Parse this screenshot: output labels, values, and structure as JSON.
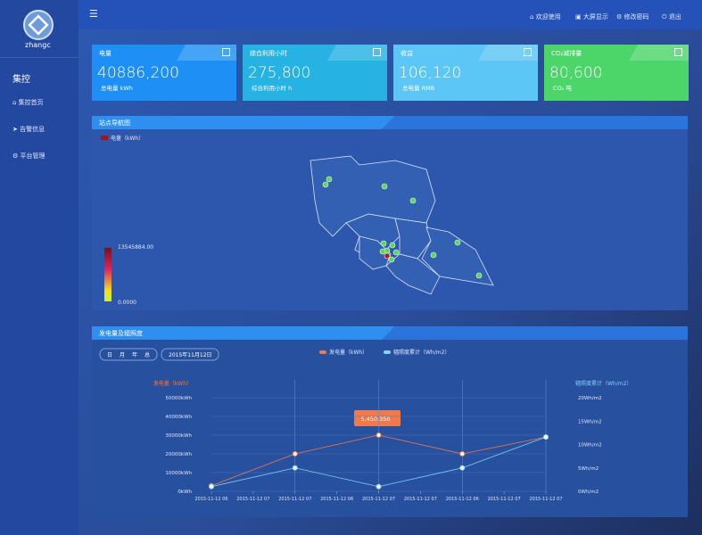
{
  "sidebar": {
    "logo": "zhangc",
    "section": "集控",
    "menu": [
      "集控首页",
      "告警信息",
      "平台管理"
    ]
  },
  "topbar": {
    "links": [
      "欢迎使用",
      "大屏显示",
      "修改密码",
      "退出"
    ]
  },
  "cards": [
    {
      "title": "电量",
      "value": "40886,200",
      "subtitle": "总电量 kWh",
      "color": "#1e90f5"
    },
    {
      "title": "综合利用小时",
      "value": "275,800",
      "subtitle": "综合利用小时 h",
      "color": "#27b2e4"
    },
    {
      "title": "收益",
      "value": "106,120",
      "subtitle": "总电量 RMB",
      "color": "#5cc6f6"
    },
    {
      "title": "CO₂减排量",
      "value": "80,600",
      "subtitle": "CO₂ 吨",
      "color": "#4cd66a"
    }
  ],
  "map_panel": {
    "title": "站点导航图",
    "legend": "电量（kWh）",
    "scale_max": "13545884.00",
    "scale_min": "0.0000"
  },
  "chart_panel": {
    "title": "发电量及辐照度",
    "buttons": [
      "日",
      "月",
      "年",
      "总"
    ],
    "date": "2015年11月12日",
    "tooltip": "5,450.350"
  },
  "chart_data": {
    "type": "line",
    "y_label": "发电量（kWh）",
    "y2_label": "辐照度累计（Wh/m2）",
    "x": [
      0,
      1,
      2,
      3,
      4
    ],
    "xlim": [
      0,
      4
    ],
    "xticks": [
      {
        "value": 0,
        "label": "2015-11-12 06"
      },
      {
        "value": 0.5,
        "label": "2015-11-12 07"
      },
      {
        "value": 1,
        "label": "2015-11-12 07"
      },
      {
        "value": 1.5,
        "label": "2015-11-12 06"
      },
      {
        "value": 2,
        "label": "2015-11-12 07"
      },
      {
        "value": 2.5,
        "label": "2015-11-12 07"
      },
      {
        "value": 3,
        "label": "2015-11-12 06"
      },
      {
        "value": 3.5,
        "label": "2015-11-12 07"
      },
      {
        "value": 4,
        "label": "2015-11-12 07"
      }
    ],
    "ylim": [
      0,
      50000
    ],
    "yticks": [
      {
        "value": 0,
        "label": "0kWh"
      },
      {
        "value": 10000,
        "label": "10000kWh"
      },
      {
        "value": 20000,
        "label": "20000kWh"
      },
      {
        "value": 30000,
        "label": "30000kWh"
      },
      {
        "value": 40000,
        "label": "40000kWh"
      },
      {
        "value": 50000,
        "label": "50000kWh"
      }
    ],
    "y2lim": [
      0,
      20
    ],
    "y2ticks": [
      {
        "value": 0,
        "label": "0Wh/m2"
      },
      {
        "value": 5,
        "label": "5Wh/m2"
      },
      {
        "value": 10,
        "label": "10Wh/m2"
      },
      {
        "value": 15,
        "label": "15Wh/m2"
      },
      {
        "value": 20,
        "label": "20Wh/m2"
      }
    ],
    "series": [
      {
        "name": "发电量（kWh）",
        "color": "#f07a4a",
        "values": [
          3000,
          20000,
          30000,
          20000,
          29000
        ]
      },
      {
        "name": "辐照度累计（Wh/m2）",
        "color": "#7fd3f5",
        "axis": "y2",
        "values": [
          1,
          5,
          1,
          5,
          11.6
        ]
      }
    ]
  }
}
